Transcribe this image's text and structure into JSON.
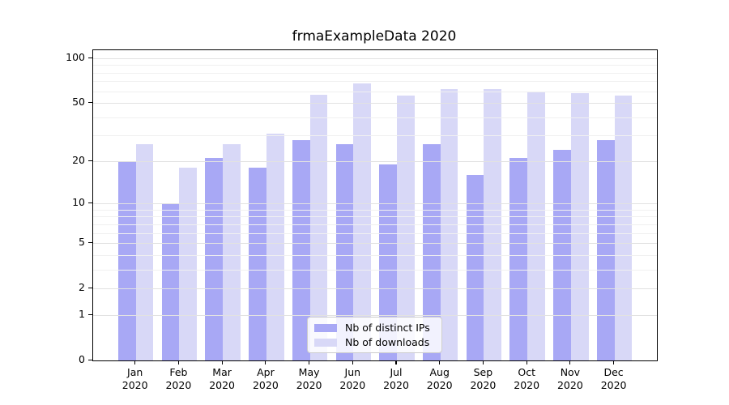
{
  "title": "frmaExampleData 2020",
  "colors": {
    "bar_ips": "#a8a8f5",
    "bar_downloads": "#d8d8f7",
    "grid_major": "#e2e2e2",
    "grid_minor": "#f0f0f0",
    "axis": "#000000",
    "legend_border": "#cccccc",
    "background": "#ffffff"
  },
  "chart_data": {
    "type": "bar",
    "title": "frmaExampleData 2020",
    "categories": [
      "Jan 2020",
      "Feb 2020",
      "Mar 2020",
      "Apr 2020",
      "May 2020",
      "Jun 2020",
      "Jul 2020",
      "Aug 2020",
      "Sep 2020",
      "Oct 2020",
      "Nov 2020",
      "Dec 2020"
    ],
    "months": [
      "Jan",
      "Feb",
      "Mar",
      "Apr",
      "May",
      "Jun",
      "Jul",
      "Aug",
      "Sep",
      "Oct",
      "Nov",
      "Dec"
    ],
    "year_label": "2020",
    "series": [
      {
        "key": "ips",
        "name": "Nb of distinct IPs",
        "color": "#a8a8f5",
        "values": [
          20,
          10,
          21,
          18,
          28,
          26,
          19,
          26,
          16,
          21,
          24,
          28
        ]
      },
      {
        "key": "downloads",
        "name": "Nb of downloads",
        "color": "#d8d8f7",
        "values": [
          26,
          18,
          26,
          31,
          57,
          68,
          56,
          62,
          62,
          60,
          58,
          56
        ]
      }
    ],
    "xlabel": "",
    "ylabel": "",
    "y_scale": "log10(value+1)",
    "y_ticks": [
      0,
      1,
      2,
      5,
      10,
      20,
      50,
      100
    ],
    "y_minor_gridlines": [
      1,
      2,
      3,
      4,
      5,
      6,
      7,
      8,
      9,
      10,
      20,
      30,
      40,
      50,
      60,
      70,
      80,
      90,
      100
    ],
    "ylim": [
      0,
      113
    ],
    "grid": true,
    "grid_above_bars": true,
    "legend_position": "lower center"
  }
}
